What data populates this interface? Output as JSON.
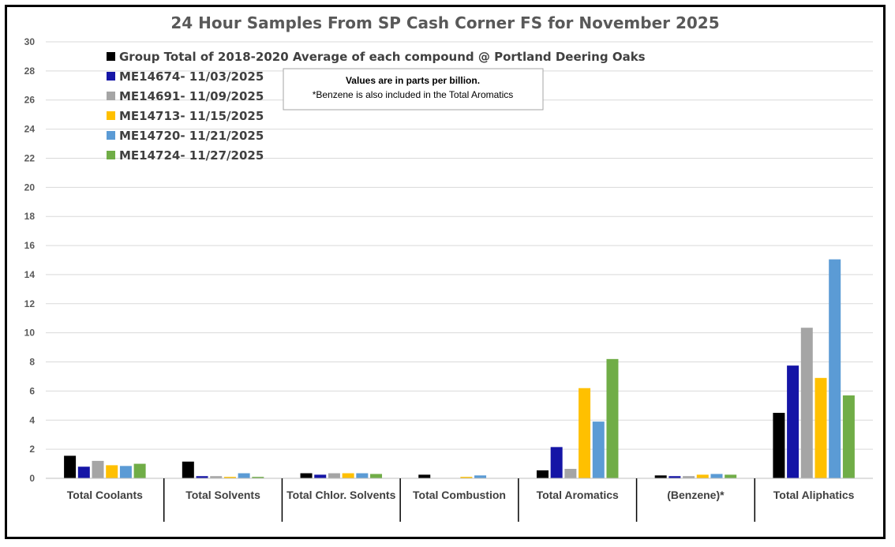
{
  "chart_data": {
    "type": "bar",
    "title": "24 Hour Samples From SP Cash Corner FS for November 2025",
    "ylim": [
      0,
      30
    ],
    "ytick_step": 2,
    "grid": true,
    "legend_position": "top-left",
    "categories": [
      "Total Coolants",
      "Total Solvents",
      "Total Chlor. Solvents",
      "Total Combustion",
      "Total Aromatics",
      "(Benzene)*",
      "Total Aliphatics"
    ],
    "series": [
      {
        "name": "Group Total of 2018-2020 Average of each compound @ Portland Deering Oaks",
        "color": "#000000",
        "values": [
          1.55,
          1.15,
          0.35,
          0.25,
          0.55,
          0.2,
          4.5
        ]
      },
      {
        "name": "ME14674- 11/03/2025",
        "color": "#1515A6",
        "values": [
          0.8,
          0.15,
          0.25,
          0.02,
          2.15,
          0.15,
          7.75
        ]
      },
      {
        "name": "ME14691- 11/09/2025",
        "color": "#A5A5A5",
        "values": [
          1.2,
          0.15,
          0.35,
          0.02,
          0.65,
          0.15,
          10.35
        ]
      },
      {
        "name": "ME14713- 11/15/2025",
        "color": "#FFC000",
        "values": [
          0.9,
          0.1,
          0.35,
          0.1,
          6.2,
          0.25,
          6.9
        ]
      },
      {
        "name": "ME14720- 11/21/2025",
        "color": "#5B9BD5",
        "values": [
          0.85,
          0.35,
          0.35,
          0.2,
          3.9,
          0.3,
          15.05
        ]
      },
      {
        "name": "ME14724- 11/27/2025",
        "color": "#70AD47",
        "values": [
          1.0,
          0.1,
          0.3,
          0.02,
          8.2,
          0.25,
          5.7
        ]
      }
    ]
  },
  "annotation": {
    "line1": "Values are in parts per billion.",
    "line2": "*Benzene is also included in the Total Aromatics"
  }
}
